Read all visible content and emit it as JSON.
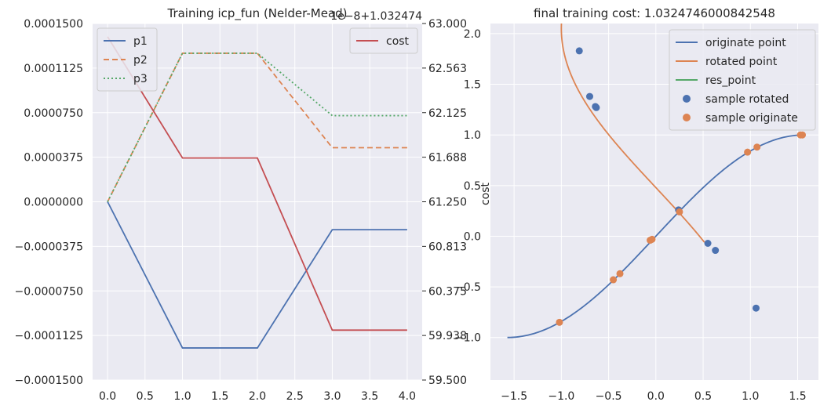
{
  "chart_data": [
    {
      "type": "line",
      "title": "Training icp_fun (Nelder-Mead)",
      "x": [
        0,
        1,
        2,
        3,
        4
      ],
      "xlim": [
        -0.2,
        4.2
      ],
      "xticks": [
        "0.0",
        "0.5",
        "1.0",
        "1.5",
        "2.0",
        "2.5",
        "3.0",
        "3.5",
        "4.0"
      ],
      "ylim": [
        -0.00015,
        0.00015
      ],
      "yticks": [
        "0.0001500",
        "0.0001125",
        "0.0000750",
        "0.0000375",
        "0.0000000",
        "−0.0000375",
        "−0.0000750",
        "−0.0001125",
        "−0.0001500"
      ],
      "legend_position": "upper left",
      "grid": true,
      "series": [
        {
          "name": "p1",
          "style": "solid",
          "color": "#4c72b0",
          "values": [
            0,
            -0.000123,
            -0.000123,
            -2.35e-05,
            -2.35e-05
          ]
        },
        {
          "name": "p2",
          "style": "dashed",
          "color": "#dd8452",
          "values": [
            0,
            0.000125,
            0.000125,
            4.55e-05,
            4.55e-05
          ]
        },
        {
          "name": "p3",
          "style": "dotted",
          "color": "#55a868",
          "values": [
            0,
            0.000125,
            0.000125,
            7.25e-05,
            7.25e-05
          ]
        }
      ],
      "secondary_axis": {
        "offset_text": "1e−8+1.032474",
        "ylim": [
          59.5,
          63.0
        ],
        "yticks": [
          "63.000",
          "62.563",
          "62.125",
          "61.688",
          "61.250",
          "60.813",
          "60.375",
          "59.938",
          "59.500"
        ],
        "legend_position": "upper right",
        "series": [
          {
            "name": "cost",
            "style": "solid",
            "color": "#c44e52",
            "values": [
              62.87,
              61.68,
              61.68,
              59.99,
              59.99
            ]
          }
        ]
      }
    },
    {
      "type": "scatter",
      "title": "final training cost: 1.0324746000842548",
      "ylabel": "cost",
      "xlim": [
        -1.75,
        1.72
      ],
      "ylim": [
        -1.42,
        2.1
      ],
      "xticks": [
        "−1.5",
        "−1.0",
        "−0.5",
        "0.0",
        "0.5",
        "1.0",
        "1.5"
      ],
      "yticks": [
        "2.0",
        "1.5",
        "1.0",
        "0.5",
        "0.0",
        "−0.5",
        "−1.0"
      ],
      "legend_position": "upper right",
      "grid": true,
      "legend": [
        "originate point",
        "rotated point",
        "res_point",
        "sample rotated",
        "sample originate"
      ],
      "curves": [
        {
          "name": "originate point",
          "color": "#4c72b0",
          "function": "sin",
          "x_range": [
            -1.5708,
            1.5708
          ]
        },
        {
          "name": "rotated point",
          "color": "#dd8452",
          "function": "rotated_sin",
          "x_range": [
            -0.8,
            1.2
          ]
        },
        {
          "name": "res_point",
          "color": "#55a868"
        }
      ],
      "scatter": [
        {
          "name": "sample rotated",
          "color": "#4c72b0",
          "points": [
            [
              -0.81,
              1.83
            ],
            [
              -0.7,
              1.38
            ],
            [
              -0.64,
              1.28
            ],
            [
              -0.63,
              1.27
            ],
            [
              0.24,
              0.26
            ],
            [
              0.55,
              -0.07
            ],
            [
              0.63,
              -0.14
            ],
            [
              1.06,
              -0.71
            ]
          ]
        },
        {
          "name": "sample originate",
          "color": "#dd8452",
          "points": [
            [
              -1.02,
              -0.85
            ],
            [
              -0.45,
              -0.43
            ],
            [
              -0.38,
              -0.37
            ],
            [
              -0.06,
              -0.04
            ],
            [
              -0.04,
              -0.03
            ],
            [
              0.25,
              0.24
            ],
            [
              0.97,
              0.83
            ],
            [
              1.07,
              0.88
            ],
            [
              1.53,
              1.0
            ],
            [
              1.55,
              1.0
            ]
          ]
        }
      ]
    }
  ]
}
